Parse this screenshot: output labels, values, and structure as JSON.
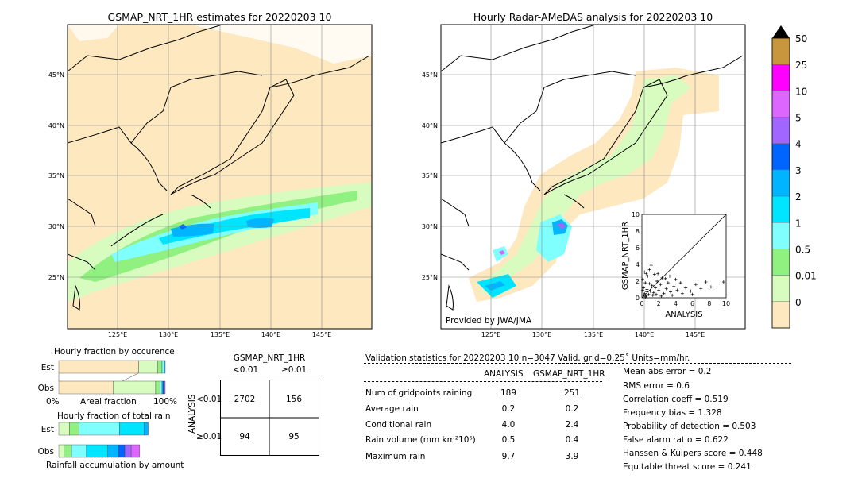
{
  "left_map": {
    "title": "GSMAP_NRT_1HR estimates for 20220203 10",
    "lat_labels": [
      "45°N",
      "40°N",
      "35°N",
      "30°N",
      "25°N"
    ],
    "lon_labels": [
      "125°E",
      "130°E",
      "135°E",
      "140°E",
      "145°E"
    ]
  },
  "right_map": {
    "title": "Hourly Radar-AMeDAS analysis for 20220203 10",
    "lat_labels": [
      "45°N",
      "40°N",
      "35°N",
      "30°N",
      "25°N"
    ],
    "lon_labels": [
      "125°E",
      "130°E",
      "135°E",
      "140°E",
      "145°E"
    ],
    "credit": "Provided by JWA/JMA"
  },
  "colorbar": {
    "labels": [
      "50",
      "25",
      "10",
      "5",
      "4",
      "3",
      "2",
      "1",
      "0.5",
      "0.01",
      "0"
    ],
    "colors": [
      "#c8963c",
      "#ff00ff",
      "#dd66ff",
      "#a066ff",
      "#0064ff",
      "#00b4ff",
      "#00e5ff",
      "#80ffff",
      "#90f080",
      "#d8fcc0",
      "#fde8c0"
    ]
  },
  "chart_data": [
    {
      "type": "scatter",
      "title": "",
      "xlabel": "ANALYSIS",
      "ylabel": "GSMAP_NRT_1HR",
      "xlim": [
        0,
        10
      ],
      "ylim": [
        0,
        10
      ],
      "x_ticks": [
        "0",
        "2",
        "4",
        "6",
        "8",
        "10"
      ],
      "y_ticks": [
        "0",
        "2",
        "4",
        "6",
        "8",
        "10"
      ],
      "points": [
        [
          0.2,
          0.3
        ],
        [
          0.3,
          0.5
        ],
        [
          0.5,
          0.2
        ],
        [
          0.6,
          1.0
        ],
        [
          0.8,
          0.4
        ],
        [
          1.0,
          0.8
        ],
        [
          1.2,
          1.5
        ],
        [
          0.4,
          1.8
        ],
        [
          0.1,
          2.2
        ],
        [
          0.7,
          2.6
        ],
        [
          1.4,
          0.6
        ],
        [
          1.6,
          1.2
        ],
        [
          1.8,
          2.0
        ],
        [
          2.0,
          0.9
        ],
        [
          2.2,
          1.6
        ],
        [
          2.4,
          2.4
        ],
        [
          2.6,
          0.5
        ],
        [
          2.9,
          1.1
        ],
        [
          3.1,
          1.8
        ],
        [
          3.4,
          0.7
        ],
        [
          3.8,
          1.4
        ],
        [
          4.2,
          0.9
        ],
        [
          4.6,
          1.8
        ],
        [
          5.2,
          1.2
        ],
        [
          5.8,
          0.8
        ],
        [
          6.4,
          1.6
        ],
        [
          7.0,
          1.1
        ],
        [
          7.6,
          1.9
        ],
        [
          8.2,
          1.3
        ],
        [
          9.7,
          1.9
        ],
        [
          0.3,
          3.1
        ],
        [
          0.9,
          3.4
        ],
        [
          1.5,
          2.8
        ],
        [
          1.1,
          3.9
        ],
        [
          0.5,
          2.9
        ],
        [
          2.8,
          2.3
        ],
        [
          3.3,
          2.6
        ],
        [
          4.0,
          2.2
        ],
        [
          1.9,
          2.9
        ],
        [
          0.2,
          1.2
        ],
        [
          0.6,
          0.7
        ],
        [
          1.3,
          0.3
        ],
        [
          0.9,
          1.7
        ],
        [
          2.3,
          0.2
        ],
        [
          1.7,
          0.4
        ],
        [
          3.6,
          0.3
        ],
        [
          4.8,
          0.5
        ],
        [
          6.0,
          0.4
        ],
        [
          0.1,
          0.9
        ],
        [
          0.4,
          0.1
        ]
      ]
    },
    {
      "type": "bar",
      "title": "Hourly fraction by occurence",
      "categories": [
        "Est",
        "Obs"
      ],
      "xlabel": "Areal fraction",
      "x_ticks": [
        "0%",
        "100%"
      ],
      "series": [
        {
          "values": [
            0.75,
            0.51
          ],
          "color": "#fde8c0"
        },
        {
          "values": [
            0.18,
            0.4
          ],
          "color": "#d8fcc0"
        },
        {
          "values": [
            0.04,
            0.04
          ],
          "color": "#90f080"
        },
        {
          "values": [
            0.02,
            0.02
          ],
          "color": "#80ffff"
        },
        {
          "values": [
            0.01,
            0.01
          ],
          "color": "#00b4ff"
        },
        {
          "values": [
            0.0,
            0.01
          ],
          "color": "#0064ff"
        },
        {
          "values": [
            0.0,
            0.01
          ],
          "color": "#a066ff"
        }
      ]
    },
    {
      "type": "bar",
      "title": "Hourly fraction of total rain",
      "categories": [
        "Est",
        "Obs"
      ],
      "xlabel": "Rainfall accumulation by amount",
      "series": [
        {
          "values": [
            0.1,
            0.05
          ],
          "color": "#d8fcc0"
        },
        {
          "values": [
            0.09,
            0.07
          ],
          "color": "#90f080"
        },
        {
          "values": [
            0.38,
            0.14
          ],
          "color": "#80ffff"
        },
        {
          "values": [
            0.23,
            0.2
          ],
          "color": "#00e5ff"
        },
        {
          "values": [
            0.04,
            0.1
          ],
          "color": "#00b4ff"
        },
        {
          "values": [
            0.0,
            0.06
          ],
          "color": "#0064ff"
        },
        {
          "values": [
            0.0,
            0.06
          ],
          "color": "#a066ff"
        },
        {
          "values": [
            0.0,
            0.08
          ],
          "color": "#dd66ff"
        }
      ]
    },
    {
      "type": "table",
      "title": "GSMAP_NRT_1HR",
      "col_headers": [
        "<0.01",
        "≥0.01"
      ],
      "row_headers": [
        "<0.01",
        "≥0.01"
      ],
      "row_axis_label": "ANALYSIS",
      "cells": [
        [
          "2702",
          "156"
        ],
        [
          "94",
          "95"
        ]
      ]
    },
    {
      "type": "table",
      "title": "Validation statistics for 20220203 10  n=3047 Valid. grid=0.25˚ Units=mm/hr.",
      "columns": [
        "ANALYSIS",
        "GSMAP_NRT_1HR"
      ],
      "rows": [
        {
          "label": "Num of gridpoints raining",
          "values": [
            "189",
            "251"
          ]
        },
        {
          "label": "Average rain",
          "values": [
            "0.2",
            "0.2"
          ]
        },
        {
          "label": "Conditional rain",
          "values": [
            "4.0",
            "2.4"
          ]
        },
        {
          "label": "Rain volume (mm km²10⁶)",
          "values": [
            "0.5",
            "0.4"
          ]
        },
        {
          "label": "Maximum rain",
          "values": [
            "9.7",
            "3.9"
          ]
        }
      ],
      "scores": [
        "Mean abs error =    0.2",
        "RMS error =    0.6",
        "Correlation coeff =  0.519",
        "Frequency bias =  1.328",
        "Probability of detection =  0.503",
        "False alarm ratio =  0.622",
        "Hanssen & Kuipers score =  0.448",
        "Equitable threat score =  0.241"
      ]
    }
  ]
}
